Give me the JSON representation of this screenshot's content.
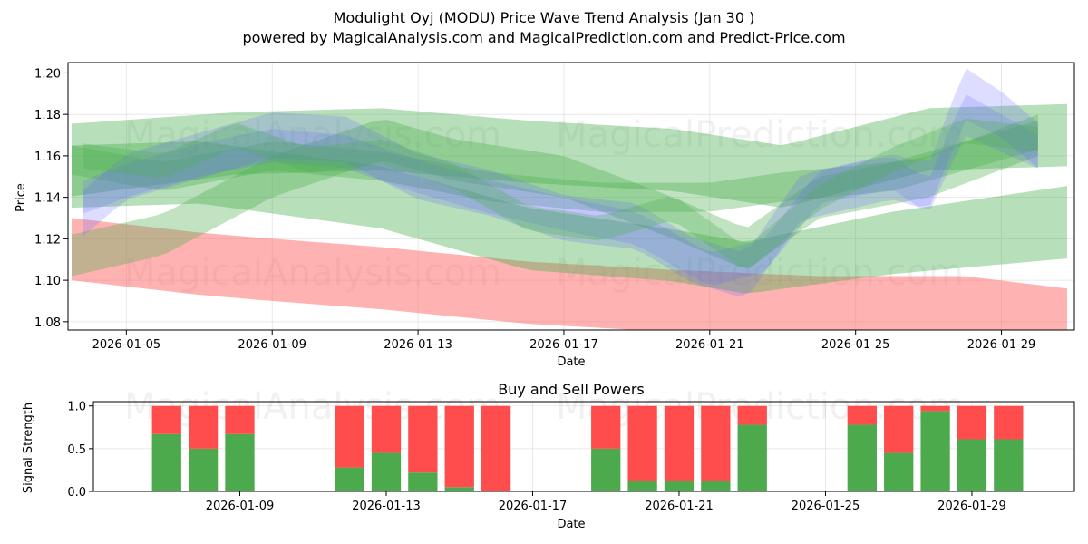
{
  "chart_data": [
    {
      "type": "area",
      "title": "Modulight Oyj (MODU) Price Wave Trend Analysis (Jan 30 )",
      "subtitle": "powered by MagicalAnalysis.com and MagicalPrediction.com and Predict-Price.com",
      "xlabel": "Date",
      "ylabel": "Price",
      "ylim": [
        1.076,
        1.205
      ],
      "x_start_day": 3.4,
      "x_end_day": 31.0,
      "x_ticks": [
        {
          "day": 5,
          "label": "2026-01-05"
        },
        {
          "day": 9,
          "label": "2026-01-09"
        },
        {
          "day": 13,
          "label": "2026-01-13"
        },
        {
          "day": 17,
          "label": "2026-01-17"
        },
        {
          "day": 21,
          "label": "2026-01-21"
        },
        {
          "day": 25,
          "label": "2026-01-25"
        },
        {
          "day": 29,
          "label": "2026-01-29"
        }
      ],
      "y_ticks": [
        1.08,
        1.1,
        1.12,
        1.14,
        1.16,
        1.18,
        1.2
      ],
      "y_tick_labels": [
        "1.08",
        "1.10",
        "1.12",
        "1.14",
        "1.16",
        "1.18",
        "1.20"
      ],
      "grid": true,
      "watermarks": [
        "MagicalAnalysis.com",
        "MagicalPrediction.com",
        "MagicalAnalysis.com",
        "MagicalPrediction.com"
      ],
      "bands": [
        {
          "color": "#ff6666",
          "opacity": 0.5,
          "x": [
            3.5,
            7,
            9,
            12,
            16,
            20,
            24,
            28,
            30.8
          ],
          "center": [
            1.115,
            1.108,
            1.105,
            1.101,
            1.094,
            1.09,
            1.088,
            1.088,
            1.082
          ],
          "width": [
            0.03,
            0.03,
            0.03,
            0.03,
            0.03,
            0.03,
            0.028,
            0.028,
            0.028
          ]
        },
        {
          "color": "#4caf50",
          "opacity": 0.4,
          "x": [
            3.5,
            8,
            12,
            16,
            20,
            23,
            27,
            30.8
          ],
          "center": [
            1.158,
            1.166,
            1.168,
            1.162,
            1.158,
            1.15,
            1.168,
            1.17
          ],
          "width": [
            0.035,
            0.03,
            0.03,
            0.03,
            0.03,
            0.03,
            0.03,
            0.03
          ]
        },
        {
          "color": "#4caf50",
          "opacity": 0.4,
          "x": [
            3.5,
            7,
            12,
            16,
            20,
            22,
            26,
            30.8
          ],
          "center": [
            1.15,
            1.152,
            1.14,
            1.12,
            1.112,
            1.106,
            1.118,
            1.128
          ],
          "width": [
            0.03,
            0.03,
            0.03,
            0.03,
            0.025,
            0.025,
            0.03,
            0.035
          ]
        },
        {
          "color": "#4caf50",
          "opacity": 0.35,
          "x": [
            3.5,
            6,
            9,
            12,
            14,
            17,
            20,
            22,
            24,
            27,
            30
          ],
          "center": [
            1.112,
            1.122,
            1.15,
            1.168,
            1.158,
            1.15,
            1.13,
            1.115,
            1.14,
            1.15,
            1.17
          ],
          "width": [
            0.02,
            0.02,
            0.02,
            0.02,
            0.02,
            0.02,
            0.02,
            0.02,
            0.02,
            0.02,
            0.02
          ]
        },
        {
          "color": "#4caf50",
          "opacity": 0.35,
          "x": [
            3.5,
            6,
            9,
            12,
            15,
            18,
            21,
            23,
            26,
            28,
            30
          ],
          "center": [
            1.158,
            1.15,
            1.16,
            1.155,
            1.145,
            1.14,
            1.14,
            1.145,
            1.15,
            1.16,
            1.17
          ],
          "width": [
            0.014,
            0.014,
            0.014,
            0.014,
            0.014,
            0.014,
            0.014,
            0.014,
            0.014,
            0.014,
            0.014
          ]
        },
        {
          "color": "#6666ff",
          "opacity": 0.22,
          "x": [
            3.8,
            5,
            7,
            9,
            11,
            13,
            15,
            17,
            19,
            20.5,
            22,
            23.5,
            26,
            27,
            28,
            29,
            30
          ],
          "center": [
            1.132,
            1.15,
            1.16,
            1.17,
            1.168,
            1.15,
            1.142,
            1.13,
            1.126,
            1.11,
            1.102,
            1.14,
            1.15,
            1.145,
            1.19,
            1.18,
            1.165
          ],
          "width": [
            0.022,
            0.022,
            0.022,
            0.022,
            0.022,
            0.022,
            0.022,
            0.022,
            0.022,
            0.022,
            0.022,
            0.022,
            0.022,
            0.022,
            0.025,
            0.022,
            0.022
          ]
        },
        {
          "color": "#6666ff",
          "opacity": 0.2,
          "x": [
            3.8,
            5,
            7,
            9,
            11,
            13,
            15,
            17,
            19,
            21,
            22.5,
            24,
            26,
            27,
            28,
            30
          ],
          "center": [
            1.14,
            1.148,
            1.158,
            1.165,
            1.162,
            1.15,
            1.14,
            1.132,
            1.125,
            1.105,
            1.112,
            1.145,
            1.152,
            1.14,
            1.18,
            1.162
          ],
          "width": [
            0.016,
            0.016,
            0.016,
            0.016,
            0.016,
            0.016,
            0.016,
            0.016,
            0.016,
            0.016,
            0.016,
            0.016,
            0.016,
            0.016,
            0.02,
            0.016
          ]
        },
        {
          "color": "#4caf50",
          "opacity": 0.3,
          "x": [
            3.8,
            6,
            8,
            10,
            12,
            14,
            16,
            18,
            20,
            22,
            24,
            26,
            28,
            30
          ],
          "center": [
            1.16,
            1.155,
            1.17,
            1.158,
            1.162,
            1.15,
            1.13,
            1.125,
            1.135,
            1.11,
            1.14,
            1.158,
            1.172,
            1.168
          ],
          "width": [
            0.012,
            0.012,
            0.012,
            0.012,
            0.012,
            0.012,
            0.012,
            0.012,
            0.012,
            0.012,
            0.012,
            0.012,
            0.012,
            0.012
          ]
        }
      ]
    },
    {
      "type": "bar",
      "title": "Buy and Sell Powers",
      "xlabel": "Date",
      "ylabel": "Signal Strength",
      "ylim": [
        0,
        1.05
      ],
      "x_start_day": 5.0,
      "x_end_day": 31.8,
      "x_ticks": [
        {
          "day": 9,
          "label": "2026-01-09"
        },
        {
          "day": 13,
          "label": "2026-01-13"
        },
        {
          "day": 17,
          "label": "2026-01-17"
        },
        {
          "day": 21,
          "label": "2026-01-21"
        },
        {
          "day": 25,
          "label": "2026-01-25"
        },
        {
          "day": 29,
          "label": "2026-01-29"
        }
      ],
      "y_ticks": [
        0.0,
        0.5,
        1.0
      ],
      "y_tick_labels": [
        "0.0",
        "0.5",
        "1.0"
      ],
      "grid": true,
      "buy_color": "#4caa4c",
      "sell_color": "#ff4d4d",
      "watermarks": [
        "MagicalAnalysis.com",
        "MagicalPrediction.com"
      ],
      "days": [
        7,
        8,
        9,
        12,
        13,
        14,
        15,
        16,
        19,
        20,
        21,
        22,
        23,
        26,
        27,
        28,
        29,
        30
      ],
      "buy": [
        0.67,
        0.5,
        0.67,
        0.28,
        0.45,
        0.22,
        0.05,
        0.0,
        0.5,
        0.12,
        0.12,
        0.12,
        0.78,
        0.78,
        0.45,
        0.94,
        0.61,
        0.61
      ],
      "sell": [
        0.33,
        0.5,
        0.33,
        0.72,
        0.55,
        0.78,
        0.95,
        1.0,
        0.5,
        0.88,
        0.88,
        0.88,
        0.22,
        0.22,
        0.55,
        0.06,
        0.39,
        0.39
      ]
    }
  ]
}
